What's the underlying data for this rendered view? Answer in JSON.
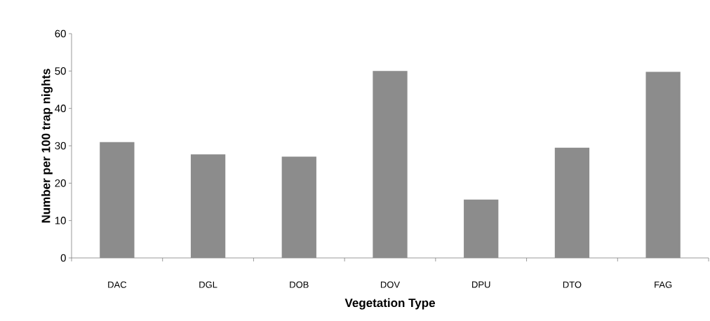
{
  "chart_data": {
    "type": "bar",
    "xlabel": "Vegetation Type",
    "ylabel": "Number per 100 trap nights",
    "categories": [
      "DAC",
      "DGL",
      "DOB",
      "DOV",
      "DPU",
      "DTO",
      "FAG"
    ],
    "values": [
      31.0,
      27.7,
      27.1,
      50.0,
      15.6,
      29.5,
      49.8
    ],
    "color": "#8c8c8c",
    "ylim": [
      0,
      60
    ],
    "yticks": [
      0,
      10,
      20,
      30,
      40,
      50,
      60
    ],
    "grid": false
  }
}
